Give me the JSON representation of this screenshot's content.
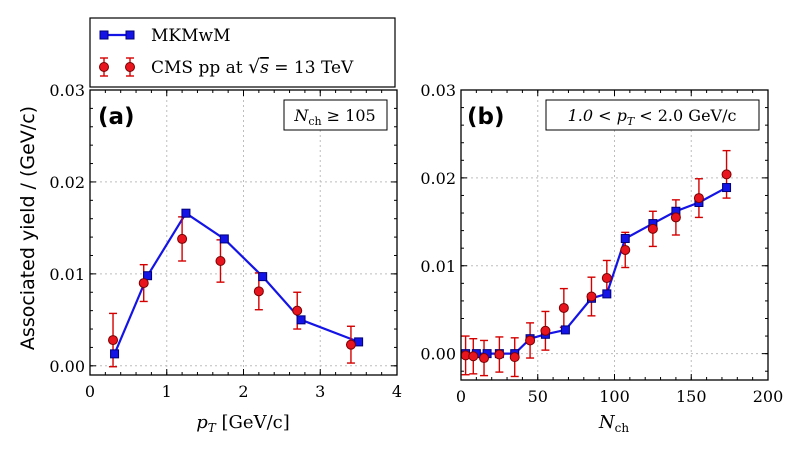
{
  "legend": {
    "model": "MKMwM",
    "data_prefix": "CMS pp at ",
    "data_sqrt": "s",
    "data_suffix": " = 13 TeV"
  },
  "ylabel": "Associated yield / (GeV/c)",
  "colors": {
    "model": "#1414e6",
    "data": "#e8141e",
    "errorbar": "#d40000"
  },
  "chart_data": [
    {
      "type": "line",
      "panel_label": "(a)",
      "annotation": {
        "prefix": "N",
        "sub": "ch",
        "suffix": " ≥ 105"
      },
      "xlabel": {
        "main": "p",
        "sub": "T",
        "unit": " [GeV/c]"
      },
      "xlim": [
        0,
        4
      ],
      "ylim": [
        -0.001,
        0.03
      ],
      "xticks": [
        0,
        1,
        2,
        3,
        4
      ],
      "xtick_labels": [
        "0",
        "1",
        "2",
        "3",
        "4"
      ],
      "yticks": [
        0.0,
        0.01,
        0.02,
        0.03
      ],
      "ytick_labels": [
        "0.00",
        "0.01",
        "0.02",
        "0.03"
      ],
      "grid": true,
      "series": [
        {
          "name": "MKMwM",
          "x": [
            0.32,
            0.75,
            1.25,
            1.75,
            2.25,
            2.75,
            3.5
          ],
          "y": [
            0.0013,
            0.0098,
            0.0166,
            0.0138,
            0.0097,
            0.005,
            0.0026
          ]
        },
        {
          "name": "CMS pp at √s = 13 TeV",
          "x": [
            0.3,
            0.7,
            1.2,
            1.7,
            2.2,
            2.7,
            3.4
          ],
          "y": [
            0.0028,
            0.009,
            0.0138,
            0.0114,
            0.0081,
            0.006,
            0.0023
          ],
          "yerr": [
            0.0029,
            0.002,
            0.0024,
            0.0023,
            0.002,
            0.002,
            0.002
          ]
        }
      ]
    },
    {
      "type": "line",
      "panel_label": "(b)",
      "annotation": {
        "prefix": "1.0 < p",
        "sub": "T",
        "suffix": " < 2.0  GeV/c"
      },
      "xlabel": {
        "main": "N",
        "sub": "ch",
        "unit": ""
      },
      "xlim": [
        0,
        200
      ],
      "ylim": [
        -0.003,
        0.03
      ],
      "xticks": [
        0,
        50,
        100,
        150,
        200
      ],
      "xtick_labels": [
        "0",
        "50",
        "100",
        "150",
        "200"
      ],
      "yticks": [
        0.0,
        0.01,
        0.02,
        0.03
      ],
      "ytick_labels": [
        "0.00",
        "0.01",
        "0.02",
        "0.03"
      ],
      "grid": true,
      "series": [
        {
          "name": "MKMwM",
          "x": [
            3,
            10,
            17,
            25,
            35,
            45,
            55,
            68,
            85,
            95,
            107,
            125,
            140,
            155,
            173
          ],
          "y": [
            0.0,
            0.0,
            0.0,
            0.0,
            0.0,
            0.0017,
            0.0022,
            0.0027,
            0.0063,
            0.0068,
            0.0131,
            0.0148,
            0.0162,
            0.0172,
            0.0189
          ]
        },
        {
          "name": "CMS pp at √s = 13 TeV",
          "x": [
            3,
            8,
            15,
            25,
            35,
            45,
            55,
            67,
            85,
            95,
            107,
            125,
            140,
            155,
            173
          ],
          "y": [
            -0.0002,
            -0.0003,
            -0.0005,
            -0.0001,
            -0.0004,
            0.0015,
            0.0026,
            0.0052,
            0.0065,
            0.0086,
            0.0118,
            0.0142,
            0.0155,
            0.0177,
            0.0204
          ],
          "yerr": [
            0.0022,
            0.002,
            0.002,
            0.002,
            0.0022,
            0.002,
            0.0022,
            0.0022,
            0.0022,
            0.002,
            0.002,
            0.002,
            0.002,
            0.0022,
            0.0027
          ]
        }
      ]
    }
  ]
}
